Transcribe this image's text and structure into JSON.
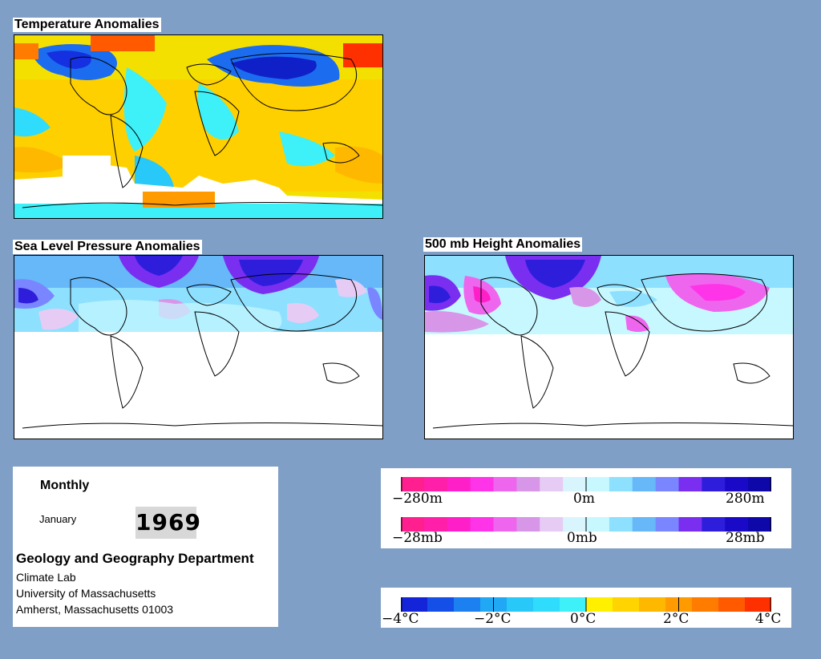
{
  "panels": {
    "temperature": {
      "title": "Temperature Anomalies"
    },
    "slp": {
      "title": "Sea Level Pressure Anomalies"
    },
    "height500": {
      "title": "500 mb Height Anomalies"
    }
  },
  "info": {
    "period": "Monthly",
    "month": "January",
    "year": "1969",
    "department": "Geology and Geography Department",
    "lines": [
      "Climate Lab",
      "University of Massachusetts",
      "Amherst, Massachusetts 01003"
    ]
  },
  "legends": {
    "height": {
      "labels": [
        "−280m",
        "0m",
        "280m"
      ],
      "colors": [
        "#ff1f8f",
        "#ff1fa8",
        "#ff1fc8",
        "#ff33e8",
        "#ee66ee",
        "#d896e8",
        "#e6ccf4",
        "#d8f4fc",
        "#c8f8ff",
        "#8ee0ff",
        "#66b8f8",
        "#7a86ff",
        "#7a2ef0",
        "#2e1edc",
        "#1a0ac8",
        "#0e08a8"
      ]
    },
    "pressure": {
      "labels": [
        "−28mb",
        "0mb",
        "28mb"
      ],
      "colors": [
        "#ff1f8f",
        "#ff1fa8",
        "#ff1fc8",
        "#ff33e8",
        "#ee66ee",
        "#d896e8",
        "#e6ccf4",
        "#d8f4fc",
        "#c8f8ff",
        "#8ee0ff",
        "#66b8f8",
        "#7a86ff",
        "#7a2ef0",
        "#2e1edc",
        "#1a0ac8",
        "#0e08a8"
      ]
    },
    "temperature": {
      "labels": [
        "−4°C",
        "−2°C",
        "0°C",
        "2°C",
        "4°C"
      ],
      "colors": [
        "#1424d8",
        "#1450e8",
        "#1c80f0",
        "#20a8f4",
        "#28c8f8",
        "#30dcfc",
        "#3ef0f8",
        "#fff000",
        "#ffd400",
        "#ffb800",
        "#ff9a00",
        "#ff7c00",
        "#ff5a00",
        "#ff3000"
      ]
    }
  }
}
